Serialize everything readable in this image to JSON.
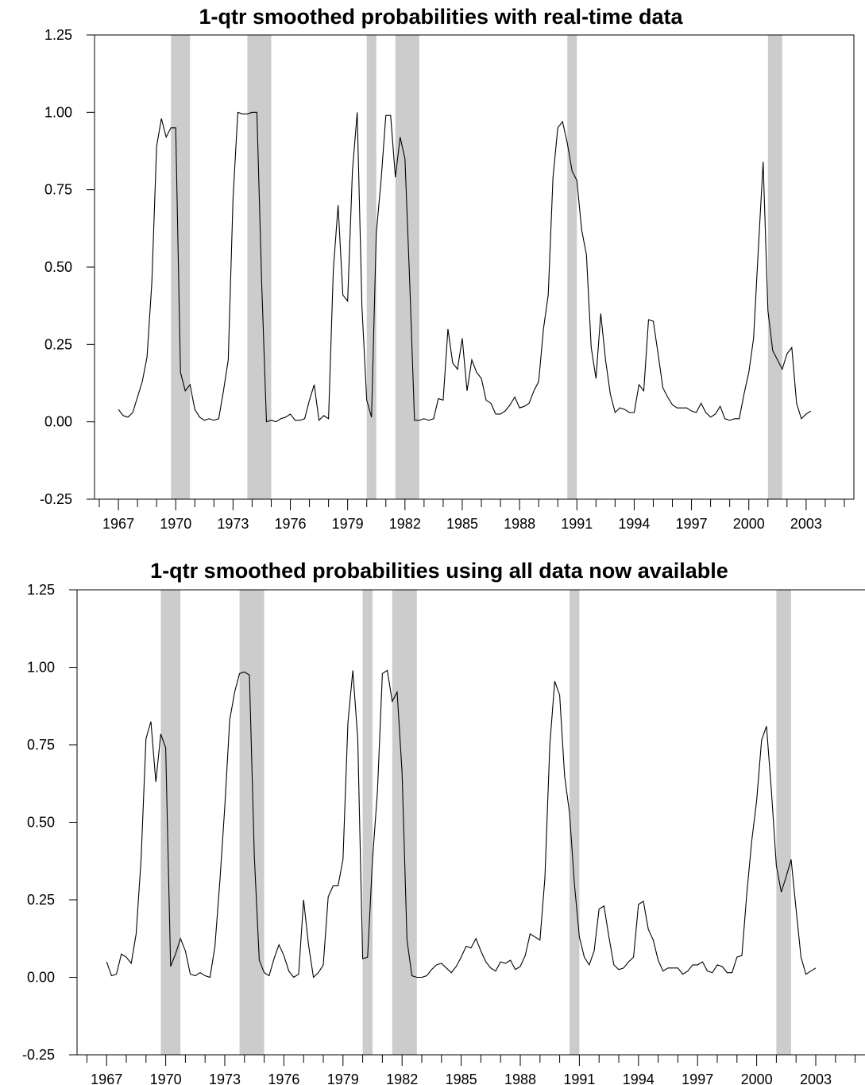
{
  "colors": {
    "band": "#cccccc",
    "line": "#000000",
    "axis": "#000000",
    "background": "#ffffff"
  },
  "chart_data": [
    {
      "type": "line",
      "title": "1-qtr smoothed probabilities with real-time data",
      "xlabel": "",
      "ylabel": "",
      "ylim": [
        -0.25,
        1.25
      ],
      "y_ticks": [
        "1.25",
        "1.00",
        "0.75",
        "0.50",
        "0.25",
        "0.00",
        "-0.25"
      ],
      "y_tick_values": [
        1.25,
        1.0,
        0.75,
        0.5,
        0.25,
        0.0,
        -0.25
      ],
      "x_ticks": [
        "1967",
        "1970",
        "1973",
        "1976",
        "1979",
        "1982",
        "1985",
        "1988",
        "1991",
        "1994",
        "1997",
        "2000",
        "2003"
      ],
      "xlim": [
        1965.75,
        2005.5
      ],
      "grid": false,
      "shaded_periods": [
        [
          1969.75,
          1970.75
        ],
        [
          1973.75,
          1975.0
        ],
        [
          1980.0,
          1980.5
        ],
        [
          1981.5,
          1982.75
        ],
        [
          1990.5,
          1991.0
        ],
        [
          2001.0,
          2001.75
        ]
      ],
      "series": [
        {
          "x_start": 1967.0,
          "x_step": 0.25,
          "values": [
            0.04,
            0.02,
            0.015,
            0.03,
            0.08,
            0.13,
            0.21,
            0.45,
            0.89,
            0.98,
            0.92,
            0.95,
            0.95,
            0.16,
            0.1,
            0.12,
            0.04,
            0.015,
            0.005,
            0.01,
            0.005,
            0.01,
            0.1,
            0.2,
            0.72,
            1.0,
            0.995,
            0.995,
            1.0,
            1.0,
            0.45,
            0.0,
            0.005,
            0.0,
            0.01,
            0.015,
            0.025,
            0.005,
            0.005,
            0.01,
            0.07,
            0.12,
            0.005,
            0.02,
            0.01,
            0.49,
            0.7,
            0.41,
            0.39,
            0.81,
            1.0,
            0.37,
            0.07,
            0.015,
            0.61,
            0.78,
            0.99,
            0.99,
            0.79,
            0.92,
            0.85,
            0.45,
            0.005,
            0.005,
            0.01,
            0.005,
            0.01,
            0.075,
            0.07,
            0.3,
            0.19,
            0.17,
            0.27,
            0.1,
            0.2,
            0.16,
            0.14,
            0.07,
            0.06,
            0.025,
            0.025,
            0.035,
            0.055,
            0.08,
            0.045,
            0.05,
            0.06,
            0.1,
            0.13,
            0.3,
            0.41,
            0.79,
            0.95,
            0.97,
            0.9,
            0.81,
            0.78,
            0.62,
            0.54,
            0.24,
            0.14,
            0.35,
            0.2,
            0.09,
            0.03,
            0.045,
            0.04,
            0.03,
            0.03,
            0.12,
            0.1,
            0.33,
            0.325,
            0.22,
            0.11,
            0.08,
            0.055,
            0.045,
            0.045,
            0.045,
            0.035,
            0.03,
            0.06,
            0.03,
            0.015,
            0.025,
            0.05,
            0.01,
            0.005,
            0.01,
            0.01,
            0.09,
            0.16,
            0.27,
            0.56,
            0.84,
            0.36,
            0.23,
            0.2,
            0.17,
            0.22,
            0.24,
            0.06,
            0.01,
            0.025,
            0.035
          ]
        }
      ]
    },
    {
      "type": "line",
      "title": "1-qtr smoothed probabilities using all data now available",
      "xlabel": "",
      "ylabel": "",
      "ylim": [
        -0.25,
        1.25
      ],
      "y_ticks": [
        "1.25",
        "1.00",
        "0.75",
        "0.50",
        "0.25",
        "0.00",
        "-0.25"
      ],
      "y_tick_values": [
        1.25,
        1.0,
        0.75,
        0.5,
        0.25,
        0.0,
        -0.25
      ],
      "x_ticks": [
        "1967",
        "1970",
        "1973",
        "1976",
        "1979",
        "1982",
        "1985",
        "1988",
        "1991",
        "1994",
        "1997",
        "2000",
        "2003"
      ],
      "xlim": [
        1965.5,
        2005.5
      ],
      "grid": false,
      "shaded_periods": [
        [
          1969.75,
          1970.75
        ],
        [
          1973.75,
          1975.0
        ],
        [
          1980.0,
          1980.5
        ],
        [
          1981.5,
          1982.75
        ],
        [
          1990.5,
          1991.0
        ],
        [
          2001.0,
          2001.75
        ]
      ],
      "series": [
        {
          "x_start": 1967.0,
          "x_step": 0.25,
          "values": [
            0.05,
            0.005,
            0.01,
            0.075,
            0.065,
            0.045,
            0.14,
            0.38,
            0.77,
            0.825,
            0.63,
            0.785,
            0.74,
            0.035,
            0.075,
            0.125,
            0.085,
            0.01,
            0.005,
            0.015,
            0.005,
            0.0,
            0.1,
            0.31,
            0.55,
            0.83,
            0.92,
            0.98,
            0.985,
            0.975,
            0.39,
            0.055,
            0.015,
            0.005,
            0.06,
            0.105,
            0.07,
            0.02,
            0.0,
            0.01,
            0.25,
            0.105,
            0.0,
            0.015,
            0.04,
            0.26,
            0.295,
            0.295,
            0.38,
            0.82,
            0.99,
            0.77,
            0.06,
            0.065,
            0.38,
            0.6,
            0.98,
            0.99,
            0.89,
            0.92,
            0.66,
            0.12,
            0.005,
            0.0,
            0.0,
            0.005,
            0.025,
            0.04,
            0.045,
            0.03,
            0.015,
            0.035,
            0.065,
            0.1,
            0.095,
            0.125,
            0.085,
            0.05,
            0.03,
            0.02,
            0.05,
            0.045,
            0.055,
            0.025,
            0.035,
            0.07,
            0.14,
            0.13,
            0.12,
            0.32,
            0.75,
            0.955,
            0.91,
            0.65,
            0.53,
            0.3,
            0.13,
            0.065,
            0.04,
            0.085,
            0.22,
            0.23,
            0.13,
            0.04,
            0.025,
            0.03,
            0.05,
            0.065,
            0.235,
            0.245,
            0.155,
            0.12,
            0.055,
            0.02,
            0.03,
            0.03,
            0.03,
            0.01,
            0.02,
            0.04,
            0.04,
            0.05,
            0.02,
            0.015,
            0.04,
            0.035,
            0.015,
            0.015,
            0.065,
            0.07,
            0.27,
            0.44,
            0.57,
            0.765,
            0.81,
            0.6,
            0.36,
            0.275,
            0.325,
            0.38,
            0.22,
            0.065,
            0.01,
            0.02,
            0.03
          ]
        }
      ]
    }
  ]
}
